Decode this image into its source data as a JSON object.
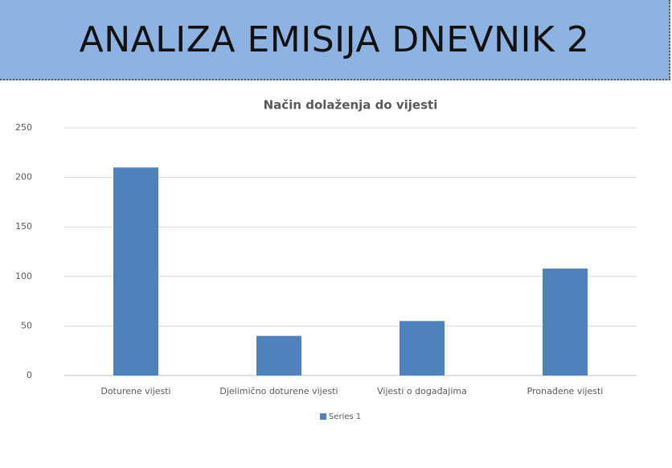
{
  "header": {
    "title": "ANALIZA EMISIJA DNEVNIK 2"
  },
  "chart_data": {
    "type": "bar",
    "title": "Način dolaženja do vijesti",
    "categories": [
      "Doturene vijesti",
      "Djelimično doturene vijesti",
      "Vijesti o događajima",
      "Pronađene vijesti"
    ],
    "series": [
      {
        "name": "Series 1",
        "color": "#4f81bd",
        "values": [
          210,
          40,
          55,
          108
        ]
      }
    ],
    "ylim": [
      0,
      250
    ],
    "yticks": [
      0,
      50,
      100,
      150,
      200,
      250
    ],
    "grid": true,
    "legend": "bottom"
  }
}
